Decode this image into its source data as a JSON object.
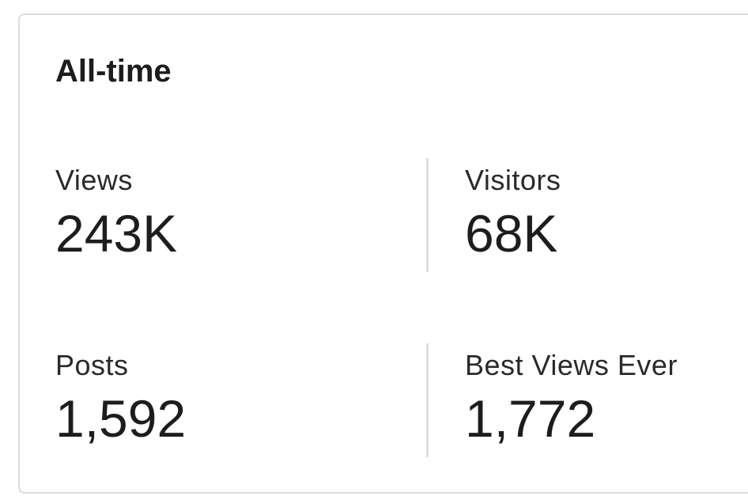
{
  "card": {
    "title": "All-time",
    "stats": [
      {
        "label": "Views",
        "value": "243K"
      },
      {
        "label": "Visitors",
        "value": "68K"
      },
      {
        "label": "Posts",
        "value": "1,592"
      },
      {
        "label": "Best Views Ever",
        "value": "1,772"
      }
    ]
  }
}
